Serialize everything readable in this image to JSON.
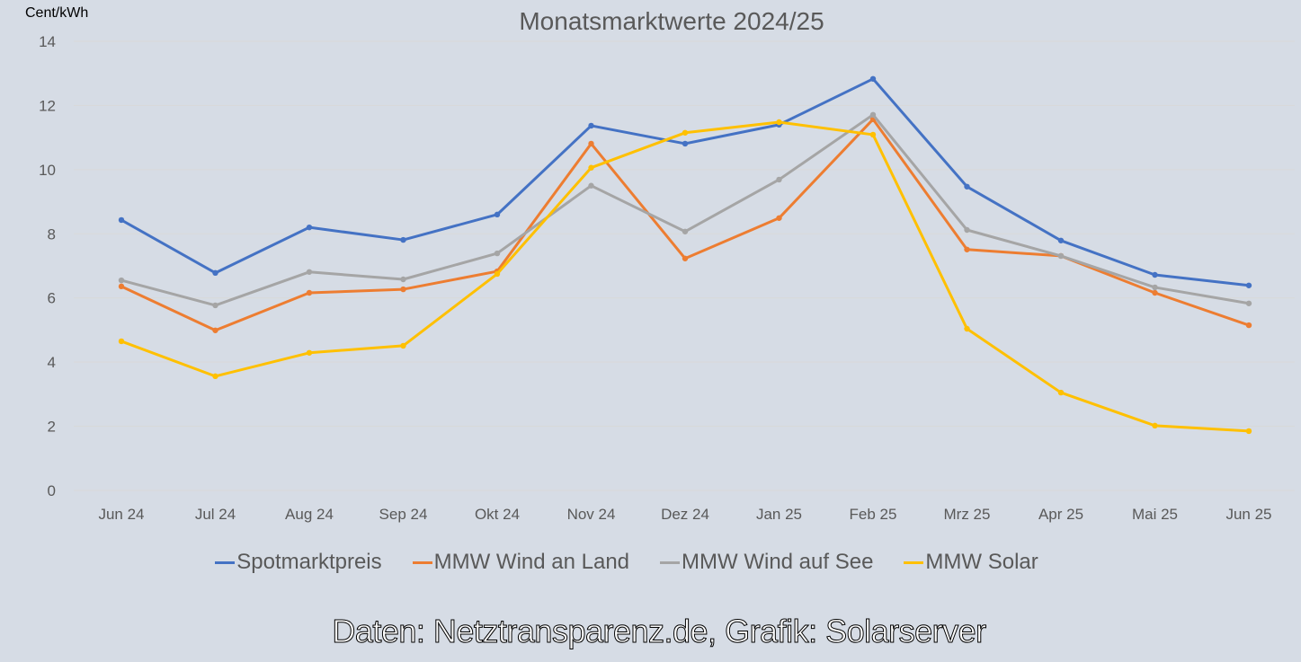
{
  "chart_data": {
    "type": "line",
    "title": "Monatsmarktwerte 2024/25",
    "ylabel": "Cent/kWh",
    "xlabel": "",
    "ylim": [
      0,
      14
    ],
    "yticks": [
      0,
      2,
      4,
      6,
      8,
      10,
      12,
      14
    ],
    "grid": true,
    "legend_position": "bottom",
    "categories": [
      "Jun 24",
      "Jul 24",
      "Aug 24",
      "Sep 24",
      "Okt 24",
      "Nov 24",
      "Dez 24",
      "Jan 25",
      "Feb 25",
      "Mrz 25",
      "Apr 25",
      "Mai 25",
      "Jun 25"
    ],
    "series": [
      {
        "name": "Spotmarktpreis",
        "color": "#4472c4",
        "values": [
          8.43,
          6.78,
          8.2,
          7.81,
          8.6,
          11.37,
          10.81,
          11.4,
          12.83,
          9.47,
          7.79,
          6.72,
          6.39
        ]
      },
      {
        "name": "MMW Wind an Land",
        "color": "#ed7d31",
        "values": [
          6.36,
          4.99,
          6.16,
          6.27,
          6.83,
          10.81,
          7.23,
          8.49,
          11.57,
          7.51,
          7.31,
          6.16,
          5.15
        ]
      },
      {
        "name": "MMW Wind auf See",
        "color": "#a5a5a5",
        "values": [
          6.55,
          5.77,
          6.81,
          6.58,
          7.39,
          9.5,
          8.07,
          9.69,
          11.71,
          8.12,
          7.31,
          6.33,
          5.83
        ]
      },
      {
        "name": "MMW Solar",
        "color": "#ffc000",
        "values": [
          4.65,
          3.56,
          4.29,
          4.51,
          6.75,
          10.06,
          11.15,
          11.48,
          11.09,
          5.04,
          3.05,
          2.02,
          1.85
        ]
      }
    ]
  },
  "source_note": "Daten: Netztransparenz.de, Grafik: Solarserver"
}
